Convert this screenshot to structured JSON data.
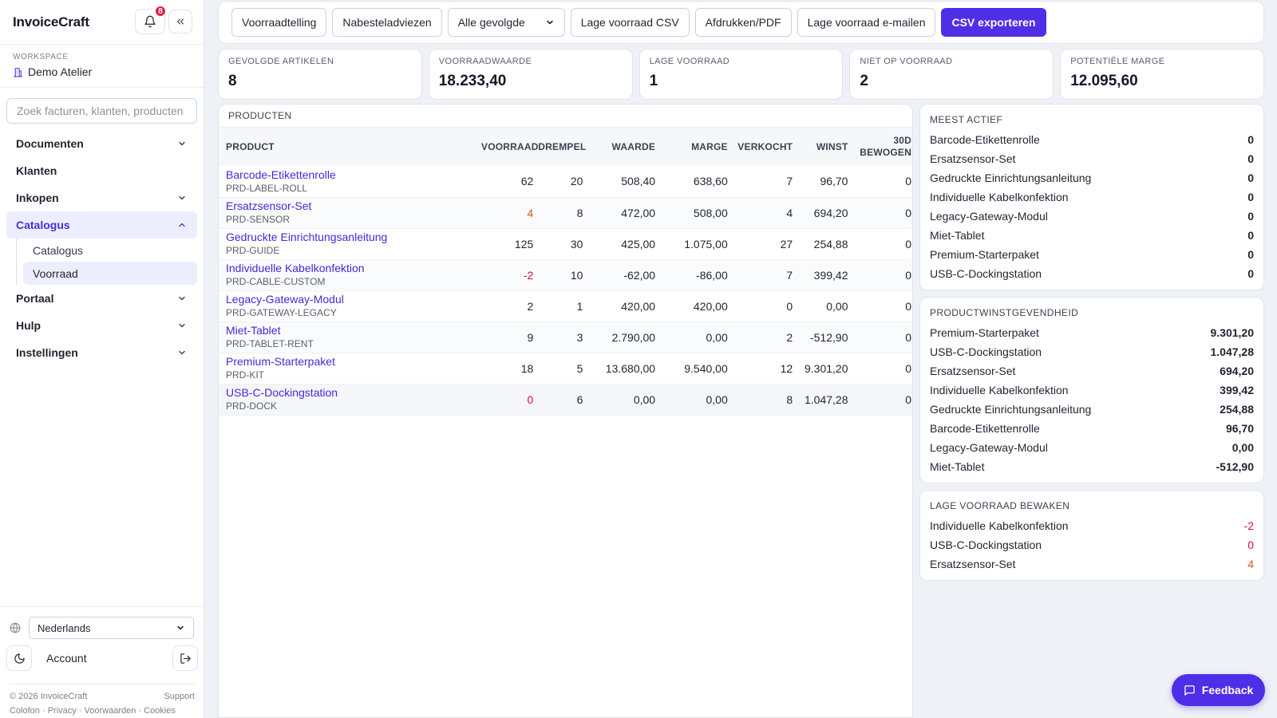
{
  "app": {
    "brand": "InvoiceCraft",
    "notification_count": "8"
  },
  "workspace": {
    "label": "WORKSPACE",
    "name": "Demo Atelier"
  },
  "search": {
    "placeholder": "Zoek facturen, klanten, producten"
  },
  "nav": {
    "documenten": "Documenten",
    "klanten": "Klanten",
    "inkopen": "Inkopen",
    "catalogus": "Catalogus",
    "sub_catalogus": "Catalogus",
    "sub_voorraad": "Voorraad",
    "portaal": "Portaal",
    "hulp": "Hulp",
    "instellingen": "Instellingen"
  },
  "sidebar_bottom": {
    "language": "Nederlands",
    "account": "Account",
    "copyright": "© 2026 InvoiceCraft",
    "support": "Support",
    "links": [
      "Colofon",
      "Privacy",
      "Voorwaarden",
      "Cookies"
    ]
  },
  "toolbar": {
    "voorraadtelling": "Voorraadtelling",
    "nabesteladviezen": "Nabesteladviezen",
    "filter_selected": "Alle gevolgde",
    "lage_voorraad_csv": "Lage voorraad CSV",
    "afdrukken_pdf": "Afdrukken/PDF",
    "lage_voorraad_email": "Lage voorraad e-mailen",
    "csv_exporteren": "CSV exporteren"
  },
  "stats": [
    {
      "label": "GEVOLGDE ARTIKELEN",
      "value": "8"
    },
    {
      "label": "VOORRAADWAARDE",
      "value": "18.233,40"
    },
    {
      "label": "LAGE VOORRAAD",
      "value": "1"
    },
    {
      "label": "NIET OP VOORRAAD",
      "value": "2"
    },
    {
      "label": "POTENTIËLE MARGE",
      "value": "12.095,60"
    }
  ],
  "products": {
    "title": "PRODUCTEN",
    "headers": {
      "product": "PRODUCT",
      "voorraad": "VOORRAAD",
      "drempel": "DREMPEL",
      "waarde": "WAARDE",
      "marge": "MARGE",
      "verkocht": "VERKOCHT",
      "winst": "WINST",
      "bewogen_1": "30D",
      "bewogen_2": "BEWOGEN"
    },
    "rows": [
      {
        "name": "Barcode-Etikettenrolle",
        "sku": "PRD-LABEL-ROLL",
        "voorraad": "62",
        "drempel": "20",
        "waarde": "508,40",
        "marge": "638,60",
        "verkocht": "7",
        "winst": "96,70",
        "bewogen": "0"
      },
      {
        "name": "Ersatzsensor-Set",
        "sku": "PRD-SENSOR",
        "voorraad": "4",
        "drempel": "8",
        "waarde": "472,00",
        "marge": "508,00",
        "verkocht": "4",
        "winst": "694,20",
        "bewogen": "0"
      },
      {
        "name": "Gedruckte Einrichtungsanleitung",
        "sku": "PRD-GUIDE",
        "voorraad": "125",
        "drempel": "30",
        "waarde": "425,00",
        "marge": "1.075,00",
        "verkocht": "27",
        "winst": "254,88",
        "bewogen": "0"
      },
      {
        "name": "Individuelle Kabelkonfektion",
        "sku": "PRD-CABLE-CUSTOM",
        "voorraad": "-2",
        "drempel": "10",
        "waarde": "-62,00",
        "marge": "-86,00",
        "verkocht": "7",
        "winst": "399,42",
        "bewogen": "0"
      },
      {
        "name": "Legacy-Gateway-Modul",
        "sku": "PRD-GATEWAY-LEGACY",
        "voorraad": "2",
        "drempel": "1",
        "waarde": "420,00",
        "marge": "420,00",
        "verkocht": "0",
        "winst": "0,00",
        "bewogen": "0"
      },
      {
        "name": "Miet-Tablet",
        "sku": "PRD-TABLET-RENT",
        "voorraad": "9",
        "drempel": "3",
        "waarde": "2.790,00",
        "marge": "0,00",
        "verkocht": "2",
        "winst": "-512,90",
        "bewogen": "0"
      },
      {
        "name": "Premium-Starterpaket",
        "sku": "PRD-KIT",
        "voorraad": "18",
        "drempel": "5",
        "waarde": "13.680,00",
        "marge": "9.540,00",
        "verkocht": "12",
        "winst": "9.301,20",
        "bewogen": "0"
      },
      {
        "name": "USB-C-Dockingstation",
        "sku": "PRD-DOCK",
        "voorraad": "0",
        "drempel": "6",
        "waarde": "0,00",
        "marge": "0,00",
        "verkocht": "8",
        "winst": "1.047,28",
        "bewogen": "0"
      }
    ]
  },
  "meest_actief": {
    "title": "MEEST ACTIEF",
    "rows": [
      {
        "name": "Barcode-Etikettenrolle",
        "value": "0"
      },
      {
        "name": "Ersatzsensor-Set",
        "value": "0"
      },
      {
        "name": "Gedruckte Einrichtungsanleitung",
        "value": "0"
      },
      {
        "name": "Individuelle Kabelkonfektion",
        "value": "0"
      },
      {
        "name": "Legacy-Gateway-Modul",
        "value": "0"
      },
      {
        "name": "Miet-Tablet",
        "value": "0"
      },
      {
        "name": "Premium-Starterpaket",
        "value": "0"
      },
      {
        "name": "USB-C-Dockingstation",
        "value": "0"
      }
    ]
  },
  "winstgevendheid": {
    "title": "PRODUCTWINSTGEVENDHEID",
    "rows": [
      {
        "name": "Premium-Starterpaket",
        "value": "9.301,20"
      },
      {
        "name": "USB-C-Dockingstation",
        "value": "1.047,28"
      },
      {
        "name": "Ersatzsensor-Set",
        "value": "694,20"
      },
      {
        "name": "Individuelle Kabelkonfektion",
        "value": "399,42"
      },
      {
        "name": "Gedruckte Einrichtungsanleitung",
        "value": "254,88"
      },
      {
        "name": "Barcode-Etikettenrolle",
        "value": "96,70"
      },
      {
        "name": "Legacy-Gateway-Modul",
        "value": "0,00"
      },
      {
        "name": "Miet-Tablet",
        "value": "-512,90"
      }
    ]
  },
  "lage_voorraad": {
    "title": "LAGE VOORRAAD BEWAKEN",
    "rows": [
      {
        "name": "Individuelle Kabelkonfektion",
        "value": "-2"
      },
      {
        "name": "USB-C-Dockingstation",
        "value": "0"
      },
      {
        "name": "Ersatzsensor-Set",
        "value": "4"
      }
    ]
  },
  "feedback": {
    "label": "Feedback"
  },
  "colors": {
    "accent": "#4f2ee8",
    "link": "#4529d6",
    "warning": "#d9560f",
    "danger": "#d4103b"
  }
}
